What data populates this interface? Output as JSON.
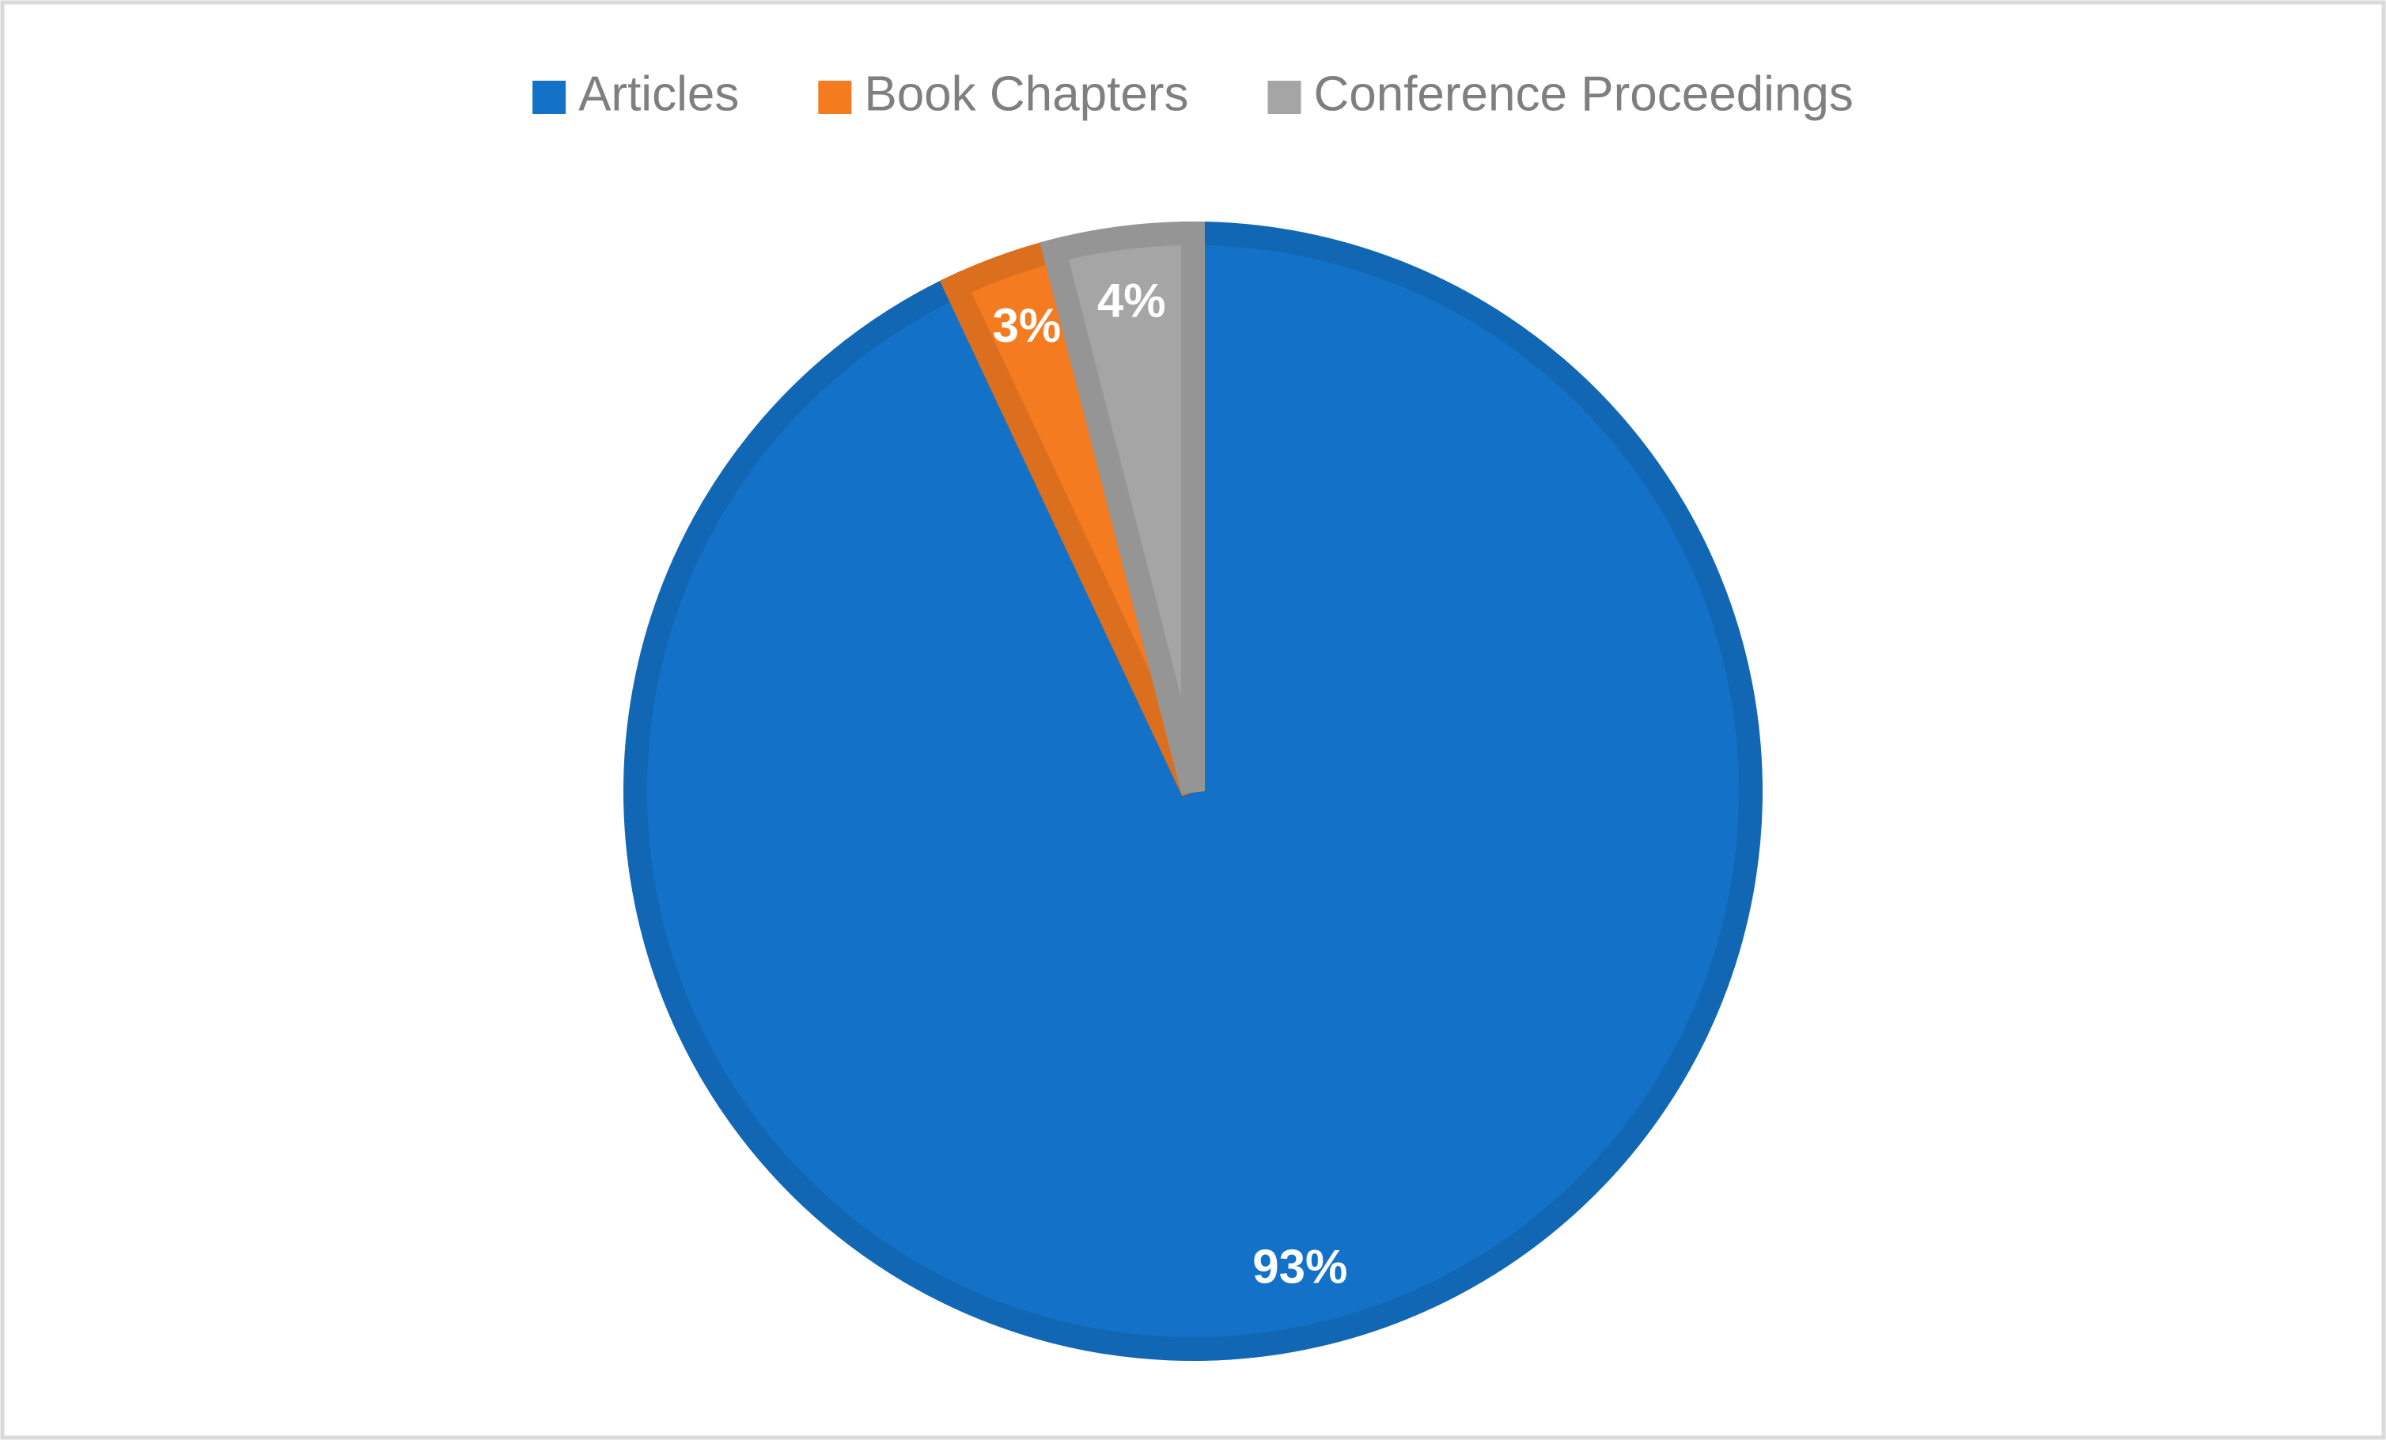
{
  "chart_data": {
    "type": "pie",
    "categories": [
      "Articles",
      "Book Chapters",
      "Conference Proceedings"
    ],
    "values": [
      93,
      3,
      4
    ],
    "value_labels": [
      "93%",
      "3%",
      "4%"
    ],
    "colors": [
      "#1372C8",
      "#F47B20",
      "#A5A5A5"
    ],
    "legend": "top"
  }
}
